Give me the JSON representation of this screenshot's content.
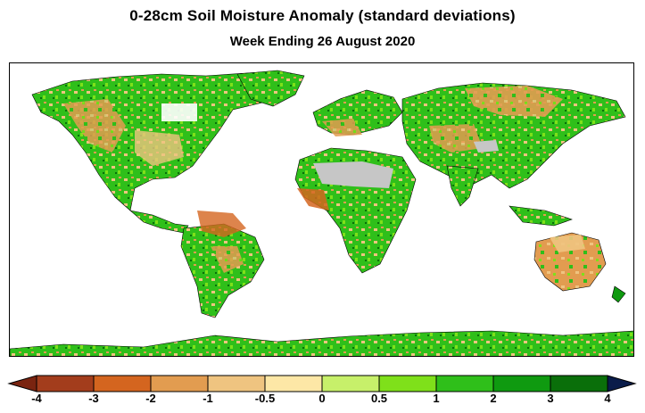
{
  "header": {
    "title": "0-28cm Soil Moisture Anomaly (standard deviations)",
    "subtitle": "Week Ending 26 August 2020"
  },
  "legend": {
    "ticks": [
      "-4",
      "-3",
      "-2",
      "-1",
      "-0.5",
      "0",
      "0.5",
      "1",
      "2",
      "3",
      "4"
    ],
    "colors": [
      "#a33d1c",
      "#d4651f",
      "#e29c50",
      "#efc480",
      "#fde7a6",
      "#c7f06a",
      "#7fe01a",
      "#2fbf1a",
      "#0f9a10",
      "#0a6f0a",
      "#062e5e"
    ],
    "lower_arrow_color": "#7a2410",
    "upper_arrow_color": "#0a1c4a"
  },
  "map": {
    "ocean_color": "#ffffff",
    "no_data_color": "#c6c6c6",
    "border_color": "#000000"
  }
}
